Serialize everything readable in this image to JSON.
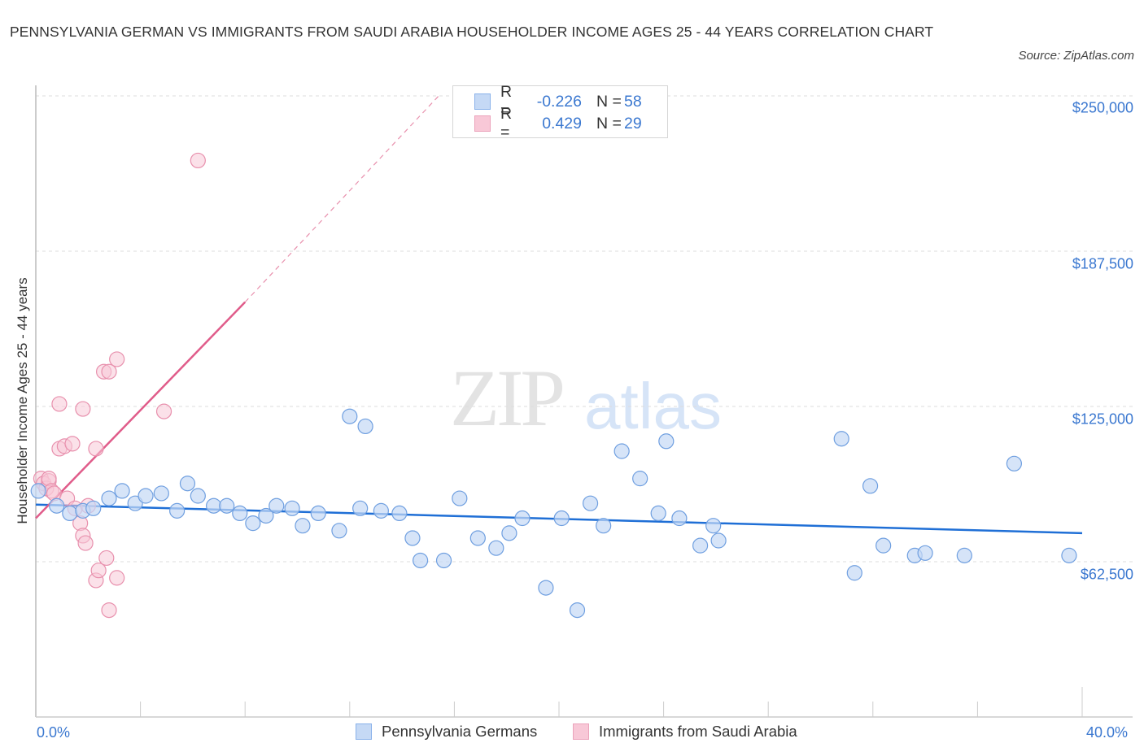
{
  "header": {
    "title": "PENNSYLVANIA GERMAN VS IMMIGRANTS FROM SAUDI ARABIA HOUSEHOLDER INCOME AGES 25 - 44 YEARS CORRELATION CHART",
    "source": "Source: ZipAtlas.com"
  },
  "watermark": {
    "zip": "ZIP",
    "atlas": "atlas"
  },
  "axes": {
    "ylabel": "Householder Income Ages 25 - 44 years",
    "yticks": [
      "$250,000",
      "$187,500",
      "$125,000",
      "$62,500"
    ],
    "xticks": [
      "0.0%",
      "40.0%"
    ]
  },
  "legend_top": {
    "rows": [
      {
        "r_label": "R =",
        "r_value": "-0.226",
        "n_label": "N =",
        "n_value": "58"
      },
      {
        "r_label": "R =",
        "r_value": "0.429",
        "n_label": "N =",
        "n_value": "29"
      }
    ]
  },
  "legend_bottom": {
    "items": [
      {
        "label": "Pennsylvania Germans"
      },
      {
        "label": "Immigrants from Saudi Arabia"
      }
    ]
  },
  "colors": {
    "blue_fill": "#c5d9f5",
    "blue_stroke": "#6f9fe0",
    "blue_line": "#1f6fd6",
    "pink_fill": "#f8c8d7",
    "pink_stroke": "#e890ad",
    "pink_line": "#e05c8a",
    "tick_text": "#3b78d0",
    "grid": "#dddddd"
  },
  "chart_data": {
    "type": "scatter",
    "title": "PENNSYLVANIA GERMAN VS IMMIGRANTS FROM SAUDI ARABIA HOUSEHOLDER INCOME AGES 25 - 44 YEARS CORRELATION CHART",
    "xlabel": "",
    "ylabel": "Householder Income Ages 25 - 44 years",
    "xlim": [
      0,
      40
    ],
    "ylim": [
      0,
      262000
    ],
    "x_unit": "%",
    "y_ticks": [
      62500,
      125000,
      187500,
      250000
    ],
    "grid": true,
    "legend_position": "bottom",
    "series": [
      {
        "name": "Pennsylvania Germans",
        "color": "#6f9fe0",
        "R": -0.226,
        "N": 58,
        "trend": {
          "x": [
            0,
            40
          ],
          "y": [
            85500,
            74000
          ]
        },
        "points": [
          [
            0.1,
            91000
          ],
          [
            0.8,
            85000
          ],
          [
            1.3,
            82000
          ],
          [
            1.8,
            83000
          ],
          [
            2.2,
            84000
          ],
          [
            2.8,
            88000
          ],
          [
            3.3,
            91000
          ],
          [
            3.8,
            86000
          ],
          [
            4.2,
            89000
          ],
          [
            4.8,
            90000
          ],
          [
            5.4,
            83000
          ],
          [
            5.8,
            94000
          ],
          [
            6.2,
            89000
          ],
          [
            6.8,
            85000
          ],
          [
            7.3,
            85000
          ],
          [
            7.8,
            82000
          ],
          [
            8.3,
            78000
          ],
          [
            8.8,
            81000
          ],
          [
            9.2,
            85000
          ],
          [
            9.8,
            84000
          ],
          [
            10.2,
            77000
          ],
          [
            10.8,
            82000
          ],
          [
            11.6,
            75000
          ],
          [
            12.0,
            121000
          ],
          [
            12.4,
            84000
          ],
          [
            12.6,
            117000
          ],
          [
            13.2,
            83000
          ],
          [
            13.9,
            82000
          ],
          [
            14.4,
            72000
          ],
          [
            14.7,
            63000
          ],
          [
            15.6,
            63000
          ],
          [
            16.2,
            88000
          ],
          [
            16.9,
            72000
          ],
          [
            17.6,
            68000
          ],
          [
            18.1,
            74000
          ],
          [
            18.6,
            80000
          ],
          [
            19.5,
            52000
          ],
          [
            20.1,
            80000
          ],
          [
            20.7,
            43000
          ],
          [
            21.2,
            86000
          ],
          [
            21.7,
            77000
          ],
          [
            22.4,
            107000
          ],
          [
            23.1,
            96000
          ],
          [
            23.8,
            82000
          ],
          [
            24.1,
            111000
          ],
          [
            24.6,
            80000
          ],
          [
            25.4,
            69000
          ],
          [
            25.9,
            77000
          ],
          [
            26.1,
            71000
          ],
          [
            30.8,
            112000
          ],
          [
            31.3,
            58000
          ],
          [
            31.9,
            93000
          ],
          [
            32.4,
            69000
          ],
          [
            33.6,
            65000
          ],
          [
            34.0,
            66000
          ],
          [
            35.5,
            65000
          ],
          [
            37.4,
            102000
          ],
          [
            39.5,
            65000
          ]
        ]
      },
      {
        "name": "Immigrants from Saudi Arabia",
        "color": "#e890ad",
        "R": 0.429,
        "N": 29,
        "trend": {
          "x": [
            0,
            8
          ],
          "y": [
            80000,
            167000
          ],
          "dashed_extension_to": [
            15.4,
            250000
          ]
        },
        "points": [
          [
            0.2,
            96000
          ],
          [
            0.3,
            94000
          ],
          [
            0.4,
            92000
          ],
          [
            0.5,
            95000
          ],
          [
            0.5,
            96000
          ],
          [
            0.6,
            91000
          ],
          [
            0.7,
            90000
          ],
          [
            0.9,
            126000
          ],
          [
            0.9,
            108000
          ],
          [
            1.1,
            109000
          ],
          [
            1.2,
            88000
          ],
          [
            1.4,
            110000
          ],
          [
            1.5,
            84000
          ],
          [
            1.7,
            78000
          ],
          [
            1.8,
            73000
          ],
          [
            1.9,
            70000
          ],
          [
            1.8,
            124000
          ],
          [
            2.3,
            108000
          ],
          [
            2.0,
            85000
          ],
          [
            2.3,
            55000
          ],
          [
            2.4,
            59000
          ],
          [
            2.6,
            139000
          ],
          [
            2.7,
            64000
          ],
          [
            2.8,
            43000
          ],
          [
            2.8,
            139000
          ],
          [
            3.1,
            56000
          ],
          [
            3.1,
            144000
          ],
          [
            4.9,
            123000
          ],
          [
            6.2,
            224000
          ]
        ]
      }
    ]
  }
}
